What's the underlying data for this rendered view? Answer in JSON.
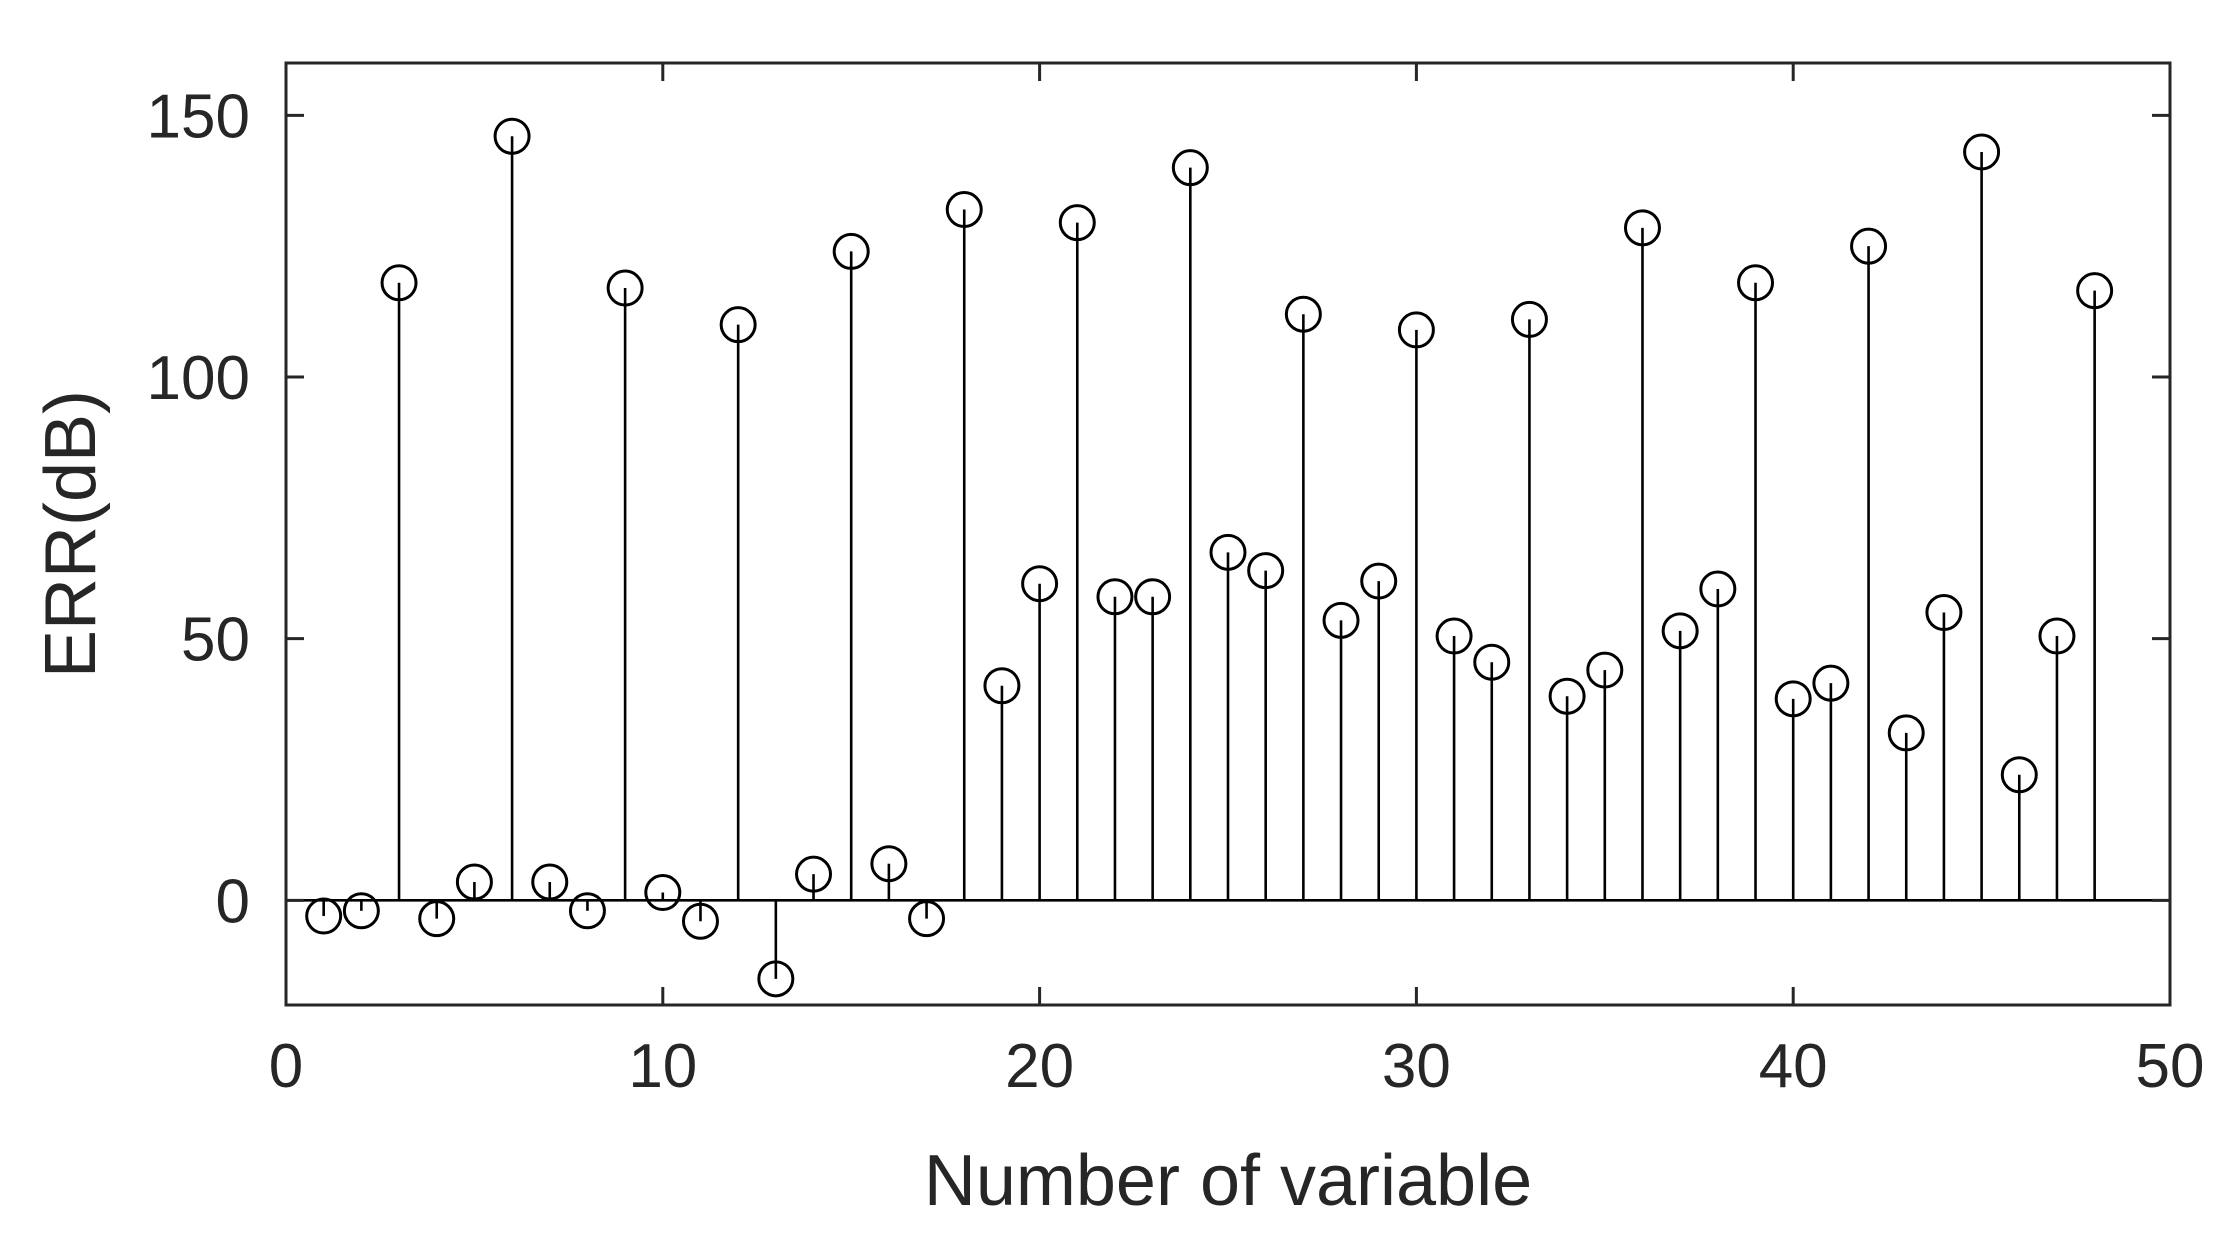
{
  "chart_data": {
    "type": "stem",
    "title": "",
    "xlabel": "Number of variable",
    "ylabel": "ERR(dB)",
    "xlim": [
      0,
      50
    ],
    "ylim": [
      -20,
      160
    ],
    "xticks": [
      0,
      10,
      20,
      30,
      40,
      50
    ],
    "yticks": [
      0,
      50,
      100,
      150
    ],
    "grid": false,
    "legend": "none",
    "colors": {
      "stem": "#000000",
      "axes": "#262626"
    },
    "series": [
      {
        "x": [
          1,
          2,
          3,
          4,
          5,
          6,
          7,
          8,
          9,
          10,
          11,
          12,
          13,
          14,
          15,
          16,
          17,
          18,
          19,
          20,
          21,
          22,
          23,
          24,
          25,
          26,
          27,
          28,
          29,
          30,
          31,
          32,
          33,
          34,
          35,
          36,
          37,
          38,
          39,
          40,
          41,
          42,
          43,
          44,
          45,
          46,
          47,
          48
        ],
        "values": [
          -3,
          -2,
          118,
          -3.5,
          3.5,
          146,
          3.5,
          -2,
          117,
          1.5,
          -4,
          110,
          -15,
          5,
          124,
          7,
          -3.5,
          132,
          41,
          60.5,
          129.5,
          58,
          58,
          140,
          66.5,
          63,
          112,
          53.5,
          61,
          109,
          50.5,
          45.5,
          111,
          39,
          44,
          128.5,
          51.5,
          59.5,
          118,
          38.5,
          41.5,
          125,
          32,
          55,
          143,
          24,
          50.5,
          116.5
        ]
      }
    ]
  }
}
